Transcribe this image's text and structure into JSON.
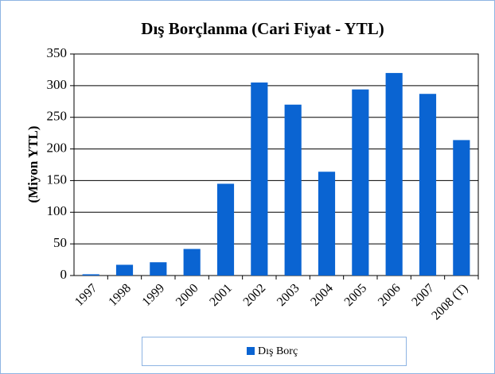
{
  "chart_data": {
    "type": "bar",
    "title": "Dış Borçlanma (Cari Fiyat - YTL)",
    "y_label": "(Miyon YTL)",
    "categories": [
      "1997",
      "1998",
      "1999",
      "2000",
      "2001",
      "2002",
      "2003",
      "2004",
      "2005",
      "2006",
      "2007",
      "2008 (T)"
    ],
    "series": [
      {
        "name": "Dış Borç",
        "color": "#0a64d2",
        "values": [
          2,
          17,
          21,
          42,
          145,
          305,
          270,
          164,
          294,
          320,
          287,
          214
        ]
      }
    ],
    "ylim": [
      0,
      350
    ],
    "yticks": [
      0,
      50,
      100,
      150,
      200,
      250,
      300,
      350
    ],
    "grid": true,
    "legend": "bottom"
  }
}
